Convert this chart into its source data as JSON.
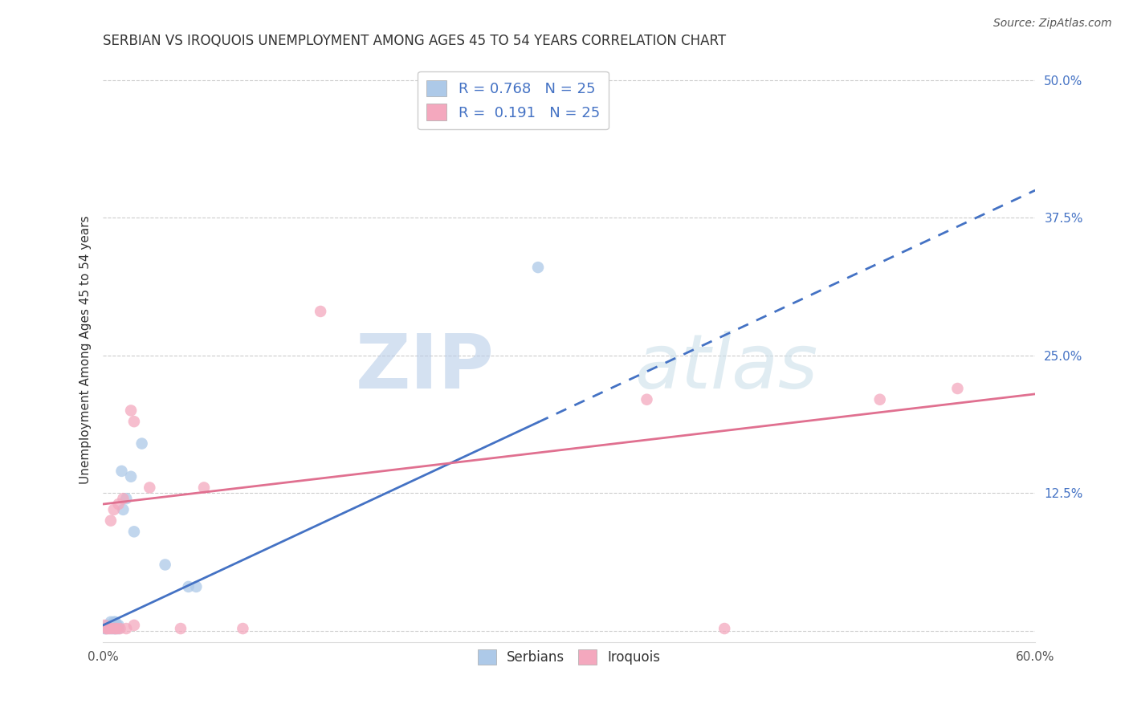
{
  "title": "SERBIAN VS IROQUOIS UNEMPLOYMENT AMONG AGES 45 TO 54 YEARS CORRELATION CHART",
  "source": "Source: ZipAtlas.com",
  "ylabel": "Unemployment Among Ages 45 to 54 years",
  "xlim": [
    0.0,
    0.6
  ],
  "ylim": [
    -0.01,
    0.52
  ],
  "xticks": [
    0.0,
    0.1,
    0.2,
    0.3,
    0.4,
    0.5,
    0.6
  ],
  "xtick_labels": [
    "0.0%",
    "",
    "",
    "",
    "",
    "",
    "60.0%"
  ],
  "ytick_labels": [
    "",
    "12.5%",
    "25.0%",
    "37.5%",
    "50.0%"
  ],
  "yticks": [
    0.0,
    0.125,
    0.25,
    0.375,
    0.5
  ],
  "serbian_color": "#adc9e8",
  "iroquois_color": "#f4a8be",
  "serbian_line_color": "#4472c4",
  "iroquois_line_color": "#e07090",
  "serbian_R": 0.768,
  "iroquois_R": 0.191,
  "N": 25,
  "legend_label_serbian": "Serbians",
  "legend_label_iroquois": "Iroquois",
  "watermark_zip": "ZIP",
  "watermark_atlas": "atlas",
  "serbian_points_x": [
    0.001,
    0.002,
    0.003,
    0.004,
    0.005,
    0.005,
    0.005,
    0.006,
    0.007,
    0.007,
    0.008,
    0.008,
    0.009,
    0.01,
    0.01,
    0.012,
    0.013,
    0.015,
    0.018,
    0.02,
    0.025,
    0.04,
    0.055,
    0.06,
    0.28
  ],
  "serbian_points_y": [
    0.002,
    0.002,
    0.005,
    0.005,
    0.002,
    0.005,
    0.008,
    0.005,
    0.002,
    0.008,
    0.002,
    0.008,
    0.005,
    0.002,
    0.005,
    0.145,
    0.11,
    0.12,
    0.14,
    0.09,
    0.17,
    0.06,
    0.04,
    0.04,
    0.33
  ],
  "iroquois_points_x": [
    0.001,
    0.002,
    0.003,
    0.004,
    0.005,
    0.006,
    0.007,
    0.008,
    0.009,
    0.01,
    0.011,
    0.013,
    0.015,
    0.018,
    0.02,
    0.03,
    0.05,
    0.065,
    0.09,
    0.14,
    0.35,
    0.4,
    0.5,
    0.55,
    0.02
  ],
  "iroquois_points_y": [
    0.005,
    0.002,
    0.002,
    0.002,
    0.1,
    0.002,
    0.11,
    0.002,
    0.002,
    0.115,
    0.002,
    0.12,
    0.002,
    0.2,
    0.005,
    0.13,
    0.002,
    0.13,
    0.002,
    0.29,
    0.21,
    0.002,
    0.21,
    0.22,
    0.19
  ],
  "serbian_trend_x0": 0.0,
  "serbian_trend_y0": 0.005,
  "serbian_trend_x1_solid": 0.28,
  "serbian_trend_x1": 0.6,
  "serbian_trend_y1": 0.4,
  "iroquois_trend_x0": 0.0,
  "iroquois_trend_y0": 0.115,
  "iroquois_trend_x1": 0.6,
  "iroquois_trend_y1": 0.215,
  "background_color": "#ffffff",
  "grid_color": "#cccccc",
  "title_fontsize": 12,
  "label_fontsize": 11,
  "tick_fontsize": 11,
  "source_fontsize": 10
}
